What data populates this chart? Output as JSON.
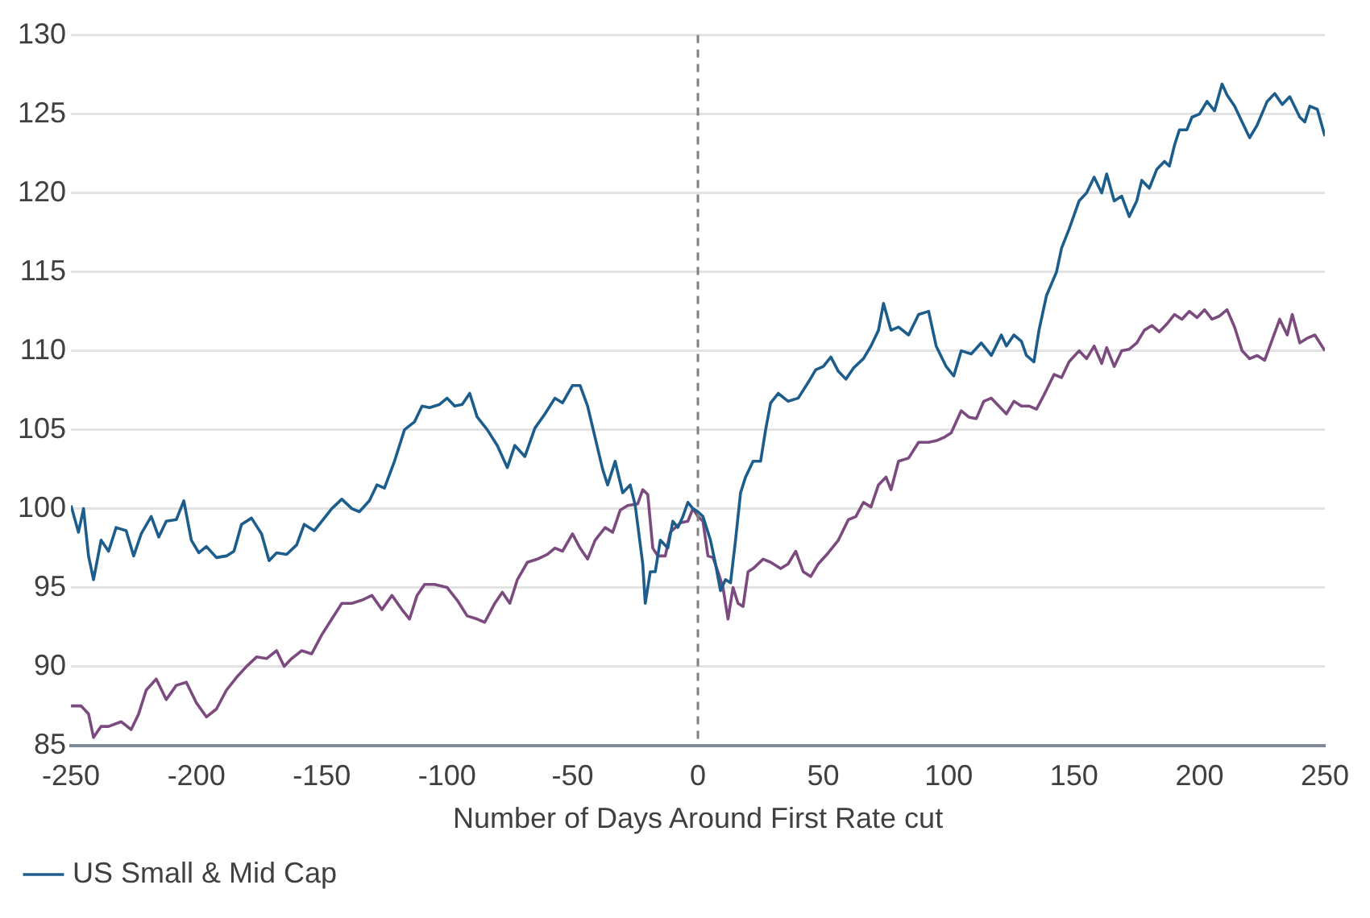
{
  "chart_data": {
    "type": "line",
    "xlabel": "Number of Days Around First Rate cut",
    "xlim": [
      -250,
      250
    ],
    "xticks": [
      -250,
      -200,
      -150,
      -100,
      -50,
      0,
      50,
      100,
      150,
      200,
      250
    ],
    "ylim": [
      85,
      130
    ],
    "yticks": [
      85,
      90,
      95,
      100,
      105,
      110,
      115,
      120,
      125,
      130
    ],
    "grid": "y",
    "legend": "bottom left",
    "marker": "none",
    "line_style": "solid",
    "ref_lines": [
      {
        "axis": "x",
        "value": 0,
        "color": "#808080",
        "line_style": "dashed"
      }
    ],
    "series": [
      {
        "name": "US Small & Mid Cap",
        "color": "#1c5d8c",
        "x": [
          -250,
          -247,
          -245,
          -243,
          -241,
          -238,
          -235,
          -232,
          -228,
          -225,
          -222,
          -218,
          -215,
          -212,
          -208,
          -205,
          -202,
          -199,
          -196,
          -192,
          -188,
          -185,
          -182,
          -178,
          -174,
          -171,
          -168,
          -164,
          -160,
          -157,
          -153,
          -150,
          -146,
          -142,
          -138,
          -135,
          -131,
          -128,
          -125,
          -121,
          -117,
          -113,
          -110,
          -107,
          -103,
          -100,
          -97,
          -94,
          -91,
          -88,
          -84,
          -80,
          -76,
          -73,
          -69,
          -65,
          -61,
          -57,
          -54,
          -50,
          -47,
          -44,
          -41,
          -38,
          -36,
          -33,
          -30,
          -27,
          -25,
          -22,
          -21,
          -19,
          -17,
          -15,
          -12,
          -10,
          -8,
          -6,
          -4,
          -2,
          0,
          2,
          5,
          7,
          9,
          11,
          13,
          15,
          17,
          19,
          22,
          25,
          27,
          29,
          32,
          36,
          40,
          44,
          47,
          50,
          53,
          56,
          59,
          62,
          66,
          69,
          72,
          74,
          77,
          80,
          84,
          88,
          92,
          95,
          99,
          102,
          105,
          109,
          113,
          117,
          121,
          123,
          126,
          129,
          131,
          134,
          136,
          139,
          143,
          145,
          148,
          152,
          155,
          158,
          161,
          163,
          166,
          169,
          172,
          175,
          177,
          180,
          183,
          186,
          188,
          190,
          192,
          195,
          197,
          200,
          203,
          206,
          209,
          211,
          214,
          217,
          220,
          223,
          227,
          230,
          233,
          236,
          240,
          242,
          244,
          247,
          250
        ],
        "values": [
          100.2,
          98.5,
          100,
          97,
          95.5,
          98,
          97.3,
          98.8,
          98.6,
          97,
          98.4,
          99.5,
          98.2,
          99.2,
          99.3,
          100.5,
          98,
          97.2,
          97.6,
          96.9,
          97,
          97.3,
          99,
          99.4,
          98.4,
          96.7,
          97.2,
          97.1,
          97.7,
          99,
          98.6,
          99.2,
          100,
          100.6,
          100,
          99.8,
          100.5,
          101.5,
          101.3,
          103,
          105,
          105.5,
          106.5,
          106.4,
          106.6,
          107,
          106.5,
          106.6,
          107.3,
          105.8,
          105,
          104,
          102.6,
          104,
          103.3,
          105.1,
          106,
          107,
          106.7,
          107.8,
          107.8,
          106.5,
          104.5,
          102.5,
          101.5,
          103,
          101,
          101.5,
          100.2,
          96.5,
          94,
          96,
          96,
          98,
          97.5,
          99.2,
          98.8,
          99.5,
          100.4,
          100,
          99.8,
          99.5,
          98,
          96.5,
          94.8,
          95.5,
          95.3,
          98,
          101,
          102,
          103,
          103,
          105,
          106.7,
          107.3,
          106.8,
          107,
          108,
          108.8,
          109,
          109.6,
          108.7,
          108.2,
          108.9,
          109.5,
          110.3,
          111.3,
          113,
          111.3,
          111.5,
          111,
          112.3,
          112.5,
          110.3,
          109,
          108.4,
          110,
          109.8,
          110.5,
          109.7,
          111,
          110.3,
          111,
          110.6,
          109.7,
          109.3,
          111.3,
          113.5,
          115,
          116.5,
          117.7,
          119.5,
          120,
          121,
          120,
          121.2,
          119.5,
          119.8,
          118.5,
          119.5,
          120.8,
          120.3,
          121.5,
          122,
          121.7,
          123,
          124,
          124,
          124.8,
          125,
          125.8,
          125.2,
          126.9,
          126.2,
          125.5,
          124.5,
          123.5,
          124.3,
          125.8,
          126.3,
          125.6,
          126.1,
          124.8,
          124.5,
          125.5,
          125.3,
          123.6
        ]
      },
      {
        "color": "#7b4a7e",
        "x": [
          -250,
          -246,
          -243,
          -241,
          -238,
          -235,
          -230,
          -226,
          -223,
          -220,
          -216,
          -212,
          -208,
          -204,
          -200,
          -196,
          -192,
          -188,
          -184,
          -180,
          -176,
          -172,
          -168,
          -165,
          -162,
          -158,
          -154,
          -150,
          -146,
          -142,
          -138,
          -134,
          -130,
          -126,
          -122,
          -118,
          -115,
          -112,
          -109,
          -105,
          -100,
          -96,
          -92,
          -88,
          -85,
          -81,
          -78,
          -75,
          -72,
          -68,
          -64,
          -60,
          -57,
          -54,
          -50,
          -47,
          -44,
          -41,
          -37,
          -34,
          -31,
          -28,
          -24,
          -22,
          -20,
          -18,
          -16,
          -13,
          -11,
          -7,
          -4,
          -2,
          0,
          2,
          4,
          6,
          8,
          10,
          12,
          14,
          16,
          18,
          20,
          22,
          26,
          29,
          33,
          36,
          39,
          42,
          45,
          48,
          52,
          56,
          60,
          63,
          66,
          69,
          72,
          75,
          77,
          80,
          84,
          88,
          92,
          95,
          98,
          101,
          105,
          108,
          111,
          114,
          117,
          120,
          123,
          126,
          129,
          132,
          135,
          138,
          142,
          145,
          148,
          152,
          155,
          158,
          161,
          163,
          166,
          169,
          172,
          175,
          178,
          181,
          184,
          187,
          190,
          193,
          196,
          199,
          202,
          205,
          208,
          211,
          214,
          217,
          220,
          223,
          226,
          229,
          232,
          235,
          237,
          240,
          243,
          246,
          248,
          250
        ],
        "values": [
          87.5,
          87.5,
          87,
          85.5,
          86.2,
          86.2,
          86.5,
          86,
          87,
          88.5,
          89.2,
          87.9,
          88.8,
          89,
          87.7,
          86.8,
          87.3,
          88.5,
          89.3,
          90,
          90.6,
          90.5,
          91,
          90,
          90.5,
          91,
          90.8,
          92,
          93,
          94,
          94,
          94.2,
          94.5,
          93.6,
          94.5,
          93.6,
          93,
          94.5,
          95.2,
          95.2,
          95,
          94.2,
          93.2,
          93,
          92.8,
          94,
          94.7,
          94,
          95.5,
          96.6,
          96.8,
          97.1,
          97.5,
          97.3,
          98.4,
          97.5,
          96.8,
          98,
          98.8,
          98.5,
          99.9,
          100.2,
          100.3,
          101.2,
          100.9,
          97.5,
          97,
          97,
          98.5,
          99.1,
          99.2,
          100,
          99.5,
          99.2,
          97,
          96.9,
          96,
          95,
          93,
          95,
          94,
          93.8,
          96,
          96.2,
          96.8,
          96.6,
          96.2,
          96.5,
          97.3,
          96,
          95.7,
          96.5,
          97.2,
          98,
          99.3,
          99.5,
          100.4,
          100.1,
          101.5,
          102,
          101.2,
          103,
          103.2,
          104.2,
          104.2,
          104.3,
          104.5,
          104.8,
          106.2,
          105.8,
          105.7,
          106.8,
          107,
          106.5,
          106,
          106.8,
          106.5,
          106.5,
          106.3,
          107.2,
          108.5,
          108.3,
          109.3,
          110,
          109.5,
          110.3,
          109.2,
          110.2,
          109,
          110,
          110.1,
          110.5,
          111.3,
          111.6,
          111.2,
          111.7,
          112.3,
          112,
          112.5,
          112.1,
          112.6,
          112,
          112.2,
          112.6,
          111.5,
          110,
          109.5,
          109.7,
          109.4,
          110.7,
          112,
          111,
          112.3,
          110.5,
          110.8,
          111,
          110.5,
          110
        ]
      }
    ]
  }
}
